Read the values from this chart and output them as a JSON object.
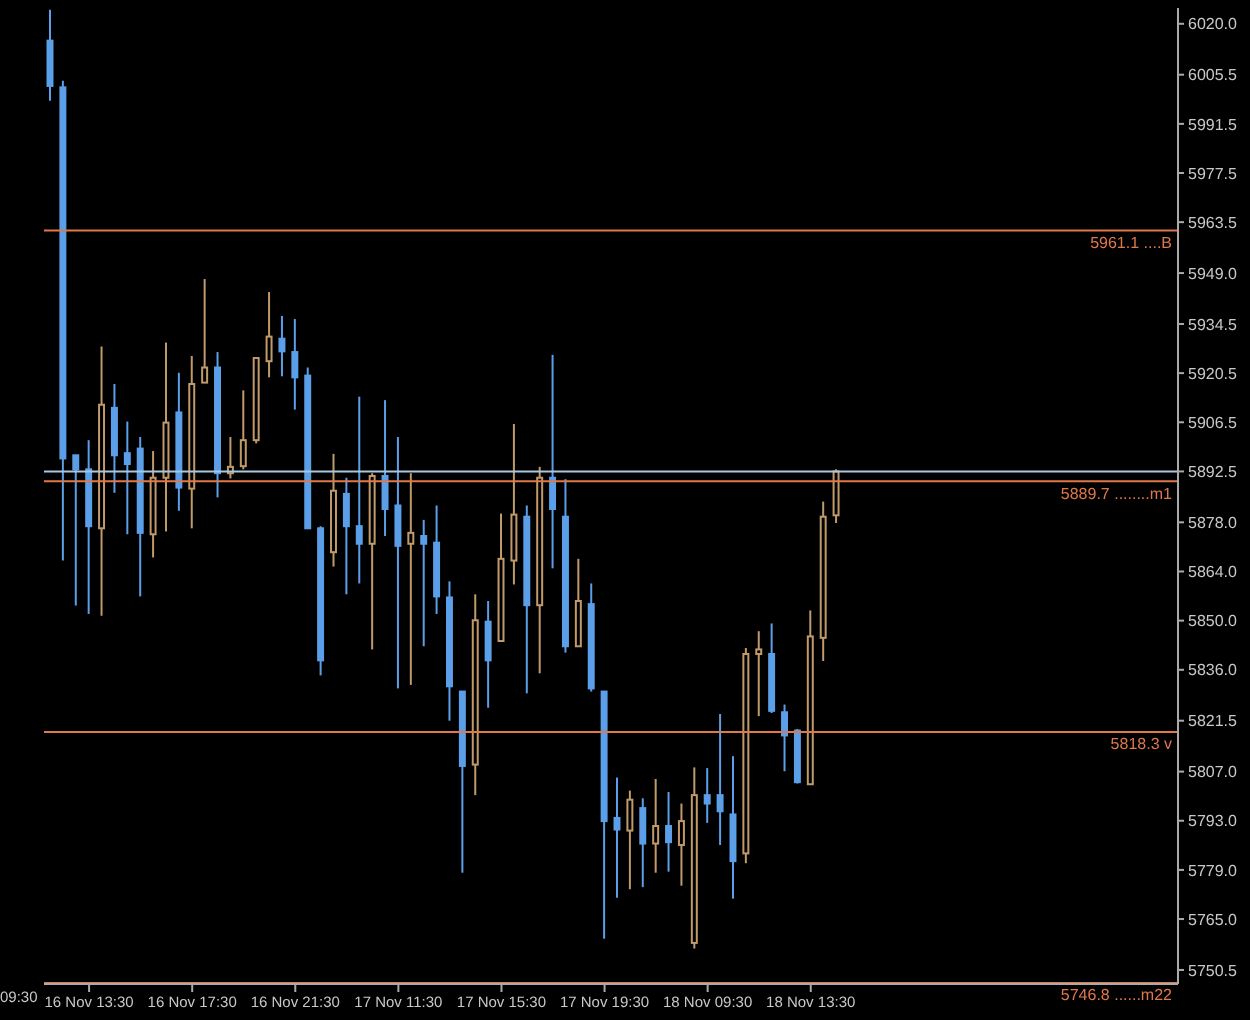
{
  "chart_data": {
    "type": "candlestick",
    "categories": [
      null,
      null,
      null,
      "16 Nov 13:30",
      null,
      null,
      null,
      null,
      null,
      null,
      null,
      "16 Nov 17:30",
      null,
      null,
      null,
      null,
      null,
      null,
      null,
      "16 Nov 21:30",
      null,
      null,
      null,
      null,
      null,
      null,
      null,
      "17 Nov 11:30",
      null,
      null,
      null,
      null,
      null,
      null,
      null,
      "17 Nov 15:30",
      null,
      null,
      null,
      null,
      null,
      null,
      null,
      "17 Nov 19:30",
      null,
      null,
      null,
      null,
      null,
      null,
      null,
      "18 Nov 09:30",
      null,
      null,
      null,
      null,
      null,
      null,
      null,
      "18 Nov 13:30",
      null,
      null,
      null,
      null,
      null,
      null,
      null,
      null,
      null,
      null,
      null,
      null,
      null,
      null,
      null,
      null,
      null,
      null,
      null,
      null,
      null,
      null,
      null,
      null,
      null,
      null,
      null,
      null
    ],
    "ohlc": [
      [
        6015.2,
        6024.0,
        5998.1,
        6002.3
      ],
      [
        6001.9,
        6003.8,
        5867.1,
        5896.2
      ],
      [
        5897.1,
        5897.1,
        5854.3,
        5893.1
      ],
      [
        5893.1,
        5901.4,
        5851.9,
        5876.9
      ],
      [
        5876.3,
        5928.1,
        5851.4,
        5911.5
      ],
      [
        5910.6,
        5917.4,
        5886.4,
        5897.1
      ],
      [
        5897.7,
        5906.7,
        5874.6,
        5894.6
      ],
      [
        5899.0,
        5902.3,
        5856.9,
        5875.0
      ],
      [
        5874.6,
        5898.3,
        5868.0,
        5890.7
      ],
      [
        5890.7,
        5929.2,
        5875.4,
        5906.4
      ],
      [
        5909.3,
        5920.6,
        5881.3,
        5887.9
      ],
      [
        5887.6,
        5925.4,
        5876.3,
        5917.4
      ],
      [
        5917.8,
        5947.3,
        5917.8,
        5922.1
      ],
      [
        5922.1,
        5926.5,
        5885.1,
        5892.0
      ],
      [
        5892.0,
        5902.3,
        5890.5,
        5893.8
      ],
      [
        5894.0,
        5915.6,
        5893.1,
        5901.4
      ],
      [
        5901.4,
        5924.8,
        5900.5,
        5924.8
      ],
      [
        5923.9,
        5943.6,
        5919.3,
        5930.9
      ],
      [
        5930.3,
        5936.8,
        5919.6,
        5926.7
      ],
      [
        5926.5,
        5935.9,
        5910.1,
        5919.3
      ],
      [
        5919.8,
        5922.1,
        5876.3,
        5876.3
      ],
      [
        5876.3,
        5876.9,
        5834.4,
        5838.7
      ],
      [
        5869.5,
        5897.5,
        5865.4,
        5887.0
      ],
      [
        5886.1,
        5890.7,
        5857.5,
        5876.9
      ],
      [
        5876.9,
        5913.8,
        5860.6,
        5871.9
      ],
      [
        5871.9,
        5892.0,
        5841.8,
        5891.2
      ],
      [
        5891.2,
        5912.8,
        5874.1,
        5881.8
      ],
      [
        5882.8,
        5902.3,
        5830.7,
        5871.3
      ],
      [
        5871.9,
        5892.0,
        5831.7,
        5875.0
      ],
      [
        5874.1,
        5878.7,
        5842.7,
        5871.9
      ],
      [
        5872.2,
        5882.8,
        5851.9,
        5856.9
      ],
      [
        5856.6,
        5861.2,
        5821.5,
        5831.3
      ],
      [
        5829.8,
        5829.8,
        5778.2,
        5808.6
      ],
      [
        5809.0,
        5857.5,
        5800.3,
        5850.1
      ],
      [
        5849.7,
        5855.6,
        5825.2,
        5838.7
      ],
      [
        5844.2,
        5880.5,
        5844.2,
        5867.6
      ],
      [
        5867.1,
        5906.0,
        5860.3,
        5880.2
      ],
      [
        5879.6,
        5882.8,
        5829.3,
        5854.4
      ],
      [
        5854.4,
        5893.8,
        5835.0,
        5890.7
      ],
      [
        5890.7,
        5925.7,
        5864.9,
        5881.8
      ],
      [
        5879.6,
        5890.3,
        5840.9,
        5842.7
      ],
      [
        5842.7,
        5867.6,
        5842.7,
        5855.6
      ],
      [
        5854.7,
        5860.6,
        5829.8,
        5830.7
      ],
      [
        5829.8,
        5829.8,
        5759.4,
        5792.9
      ],
      [
        5793.8,
        5805.3,
        5771.1,
        5790.5
      ],
      [
        5790.2,
        5801.6,
        5773.5,
        5799.0
      ],
      [
        5796.6,
        5799.4,
        5774.1,
        5786.5
      ],
      [
        5786.5,
        5804.9,
        5778.2,
        5791.5
      ],
      [
        5791.5,
        5801.2,
        5778.5,
        5786.9
      ],
      [
        5786.1,
        5797.9,
        5774.5,
        5792.9
      ],
      [
        5758.2,
        5808.2,
        5756.6,
        5800.3
      ],
      [
        5800.3,
        5808.0,
        5792.4,
        5797.9
      ],
      [
        5800.3,
        5823.4,
        5786.1,
        5795.7
      ],
      [
        5794.8,
        5811.4,
        5770.8,
        5781.5
      ],
      [
        5783.7,
        5842.2,
        5780.9,
        5840.5
      ],
      [
        5840.5,
        5847.0,
        5822.8,
        5841.8
      ],
      [
        5840.5,
        5849.2,
        5823.7,
        5824.3
      ],
      [
        5823.9,
        5826.1,
        5807.1,
        5817.3
      ],
      [
        5818.7,
        5819.1,
        5803.6,
        5804.0
      ],
      [
        5803.4,
        5852.9,
        5803.4,
        5845.5
      ],
      [
        5845.1,
        5883.9,
        5838.5,
        5879.6
      ],
      [
        5880.0,
        5893.1,
        5877.8,
        5892.5
      ],
      null,
      null,
      null,
      null,
      null,
      null,
      null,
      null,
      null,
      null,
      null,
      null,
      null,
      null,
      null,
      null,
      null,
      null,
      null,
      null,
      null,
      null,
      null,
      null,
      null,
      null
    ],
    "colors": [
      "#5b9fe8",
      "#5b9fe8",
      "#5b9fe8",
      "#5b9fe8",
      "#c09a6a",
      "#5b9fe8",
      "#5b9fe8",
      "#5b9fe8",
      "#c09a6a",
      "#c09a6a",
      "#5b9fe8",
      "#c09a6a",
      "#c09a6a",
      "#5b9fe8",
      "#c09a6a",
      "#c09a6a",
      "#c09a6a",
      "#c09a6a",
      "#5b9fe8",
      "#5b9fe8",
      "#5b9fe8",
      "#5b9fe8",
      "#c09a6a",
      "#5b9fe8",
      "#5b9fe8",
      "#c09a6a",
      "#5b9fe8",
      "#5b9fe8",
      "#c09a6a",
      "#5b9fe8",
      "#5b9fe8",
      "#5b9fe8",
      "#5b9fe8",
      "#c09a6a",
      "#5b9fe8",
      "#c09a6a",
      "#c09a6a",
      "#5b9fe8",
      "#c09a6a",
      "#5b9fe8",
      "#5b9fe8",
      "#c09a6a",
      "#5b9fe8",
      "#5b9fe8",
      "#5b9fe8",
      "#c09a6a",
      "#5b9fe8",
      "#c09a6a",
      "#5b9fe8",
      "#c09a6a",
      "#c09a6a",
      "#5b9fe8",
      "#5b9fe8",
      "#5b9fe8",
      "#c09a6a",
      "#c09a6a",
      "#5b9fe8",
      "#5b9fe8",
      "#5b9fe8",
      "#c09a6a",
      "#c09a6a",
      "#c09a6a",
      null,
      null,
      null,
      null,
      null,
      null,
      null,
      null,
      null,
      null,
      null,
      null,
      null,
      null,
      null,
      null,
      null,
      null,
      null,
      null,
      null,
      null,
      null,
      null,
      null,
      null
    ],
    "ylim": [
      5746.5,
      6024.5
    ],
    "yticks": [
      {
        "value": 6020,
        "label": "6020.0"
      },
      {
        "value": 6005.5,
        "label": "6005.5"
      },
      {
        "value": 5991.5,
        "label": "5991.5"
      },
      {
        "value": 5977.5,
        "label": "5977.5"
      },
      {
        "value": 5963.5,
        "label": "5963.5"
      },
      {
        "value": 5949,
        "label": "5949.0"
      },
      {
        "value": 5934.5,
        "label": "5934.5"
      },
      {
        "value": 5920.5,
        "label": "5920.5"
      },
      {
        "value": 5906.5,
        "label": "5906.5"
      },
      {
        "value": 5892.5,
        "label": "5892.5"
      },
      {
        "value": 5878,
        "label": "5878.0"
      },
      {
        "value": 5864,
        "label": "5864.0"
      },
      {
        "value": 5850,
        "label": "5850.0"
      },
      {
        "value": 5836,
        "label": "5836.0"
      },
      {
        "value": 5821.5,
        "label": "5821.5"
      },
      {
        "value": 5807,
        "label": "5807.0"
      },
      {
        "value": 5793,
        "label": "5793.0"
      },
      {
        "value": 5779,
        "label": "5779.0"
      },
      {
        "value": 5765,
        "label": "5765.0"
      },
      {
        "value": 5750.5,
        "label": "5750.5"
      }
    ],
    "ref_lines": [
      {
        "axis": "y",
        "value": 5961.1,
        "label": "5961.1 ....B",
        "color": "#e0784a"
      },
      {
        "axis": "y",
        "value": 5892.5,
        "label": null,
        "color": "#a8c8e0"
      },
      {
        "axis": "y",
        "value": 5889.7,
        "label": "5889.7 ........m1",
        "color": "#e0784a"
      },
      {
        "axis": "y",
        "value": 5818.3,
        "label": "5818.3  v",
        "color": "#e0784a"
      },
      {
        "axis": "y",
        "value": 5746.8,
        "label": "5746.8 ......m22",
        "color": "#e0784a"
      }
    ],
    "annotations": [
      "09:30"
    ],
    "grid": false
  }
}
